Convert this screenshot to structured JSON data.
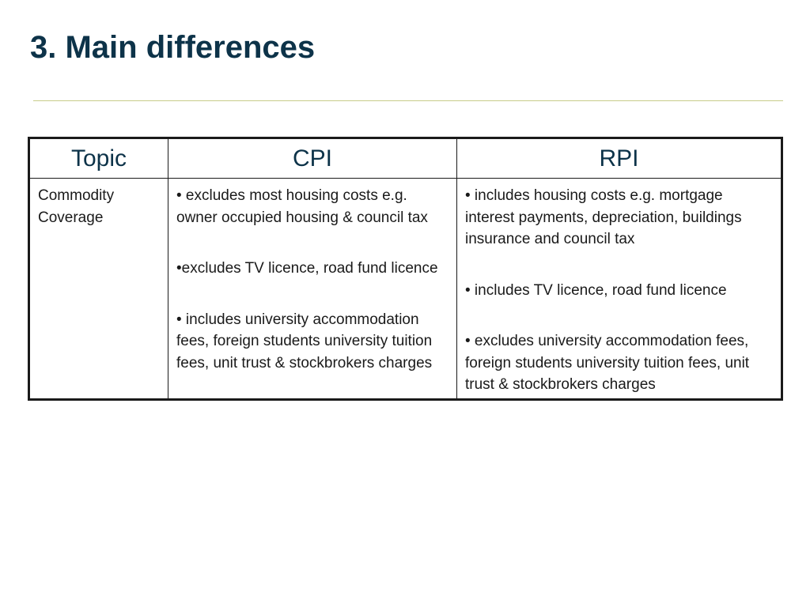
{
  "slide": {
    "title": "3. Main differences"
  },
  "table": {
    "headers": [
      "Topic",
      "CPI",
      "RPI"
    ],
    "rows": [
      {
        "topic": "Commodity Coverage",
        "cpi": [
          "• excludes most housing costs e.g. owner occupied housing & council tax",
          "•excludes TV licence, road fund licence",
          "• includes university accommodation fees, foreign students university tuition fees, unit trust & stockbrokers charges"
        ],
        "rpi": [
          "• includes housing costs e.g. mortgage interest payments, depreciation, buildings insurance and council tax",
          "• includes TV licence, road fund licence",
          "• excludes university accommodation fees, foreign students university tuition fees, unit trust & stockbrokers charges"
        ]
      }
    ]
  },
  "colors": {
    "title": "#0d3349",
    "rule": "#c8cc8a",
    "border": "#1a1a1a"
  }
}
